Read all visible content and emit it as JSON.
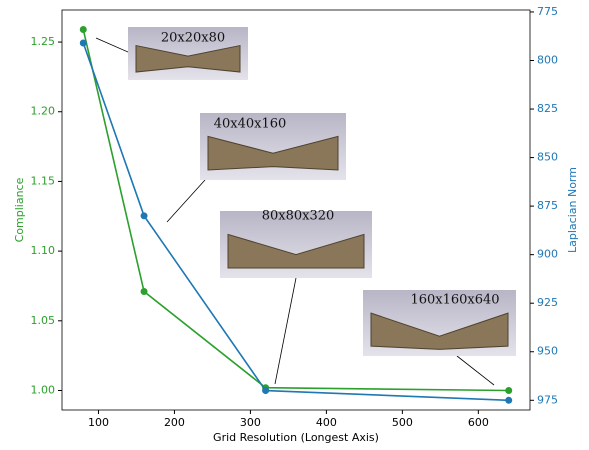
{
  "chart_data": {
    "type": "line",
    "x_label": "Grid Resolution (Longest Axis)",
    "x": [
      80,
      160,
      320,
      640
    ],
    "series": [
      {
        "name": "Compliance",
        "color": "#2ca02c",
        "axis": "y",
        "values": [
          1.259,
          1.071,
          1.002,
          1.0
        ]
      },
      {
        "name": "Laplacian Norm",
        "color": "#1f77b4",
        "axis": "y2",
        "values": [
          791,
          880,
          970,
          975
        ]
      }
    ],
    "xlim": [
      52,
      668
    ],
    "xticks": [
      100,
      200,
      300,
      400,
      500,
      600
    ],
    "ylim": [
      0.986,
      1.273
    ],
    "yticks": [
      {
        "value": 1.0,
        "label": "1.00"
      },
      {
        "value": 1.05,
        "label": "1.05"
      },
      {
        "value": 1.1,
        "label": "1.10"
      },
      {
        "value": 1.15,
        "label": "1.15"
      },
      {
        "value": 1.2,
        "label": "1.20"
      },
      {
        "value": 1.25,
        "label": "1.25"
      }
    ],
    "y2lim": [
      774,
      980
    ],
    "y2_inverted": true,
    "y2ticks": [
      775,
      800,
      825,
      850,
      875,
      900,
      925,
      950,
      975
    ],
    "annotations": [
      "20x20x80",
      "40x40x160",
      "80x80x320",
      "160x160x640"
    ]
  }
}
